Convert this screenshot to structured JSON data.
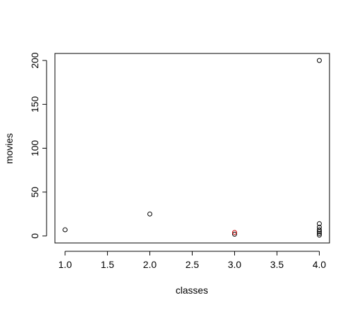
{
  "chart_data": {
    "type": "scatter",
    "title": "",
    "xlabel": "classes",
    "ylabel": "movies",
    "xlim": [
      0.88,
      4.12
    ],
    "ylim": [
      -8,
      208
    ],
    "xticks": [
      1.0,
      1.5,
      2.0,
      2.5,
      3.0,
      3.5,
      4.0
    ],
    "xtick_labels": [
      "1.0",
      "1.5",
      "2.0",
      "2.5",
      "3.0",
      "3.5",
      "4.0"
    ],
    "yticks": [
      0,
      50,
      100,
      150,
      200
    ],
    "ytick_labels": [
      "0",
      "50",
      "100",
      "150",
      "200"
    ],
    "grid": false,
    "marker": "open-circle",
    "series": [
      {
        "color": "#000000",
        "points": [
          {
            "x": 1.0,
            "y": 7
          },
          {
            "x": 2.0,
            "y": 25
          },
          {
            "x": 3.0,
            "y": 2
          },
          {
            "x": 4.0,
            "y": 200
          },
          {
            "x": 4.0,
            "y": 14
          },
          {
            "x": 4.0,
            "y": 10
          },
          {
            "x": 4.0,
            "y": 7
          },
          {
            "x": 4.0,
            "y": 5
          },
          {
            "x": 4.0,
            "y": 3
          },
          {
            "x": 4.0,
            "y": 1
          }
        ]
      },
      {
        "color": "#cc0000",
        "points": [
          {
            "x": 3.0,
            "y": 4
          }
        ]
      }
    ]
  }
}
